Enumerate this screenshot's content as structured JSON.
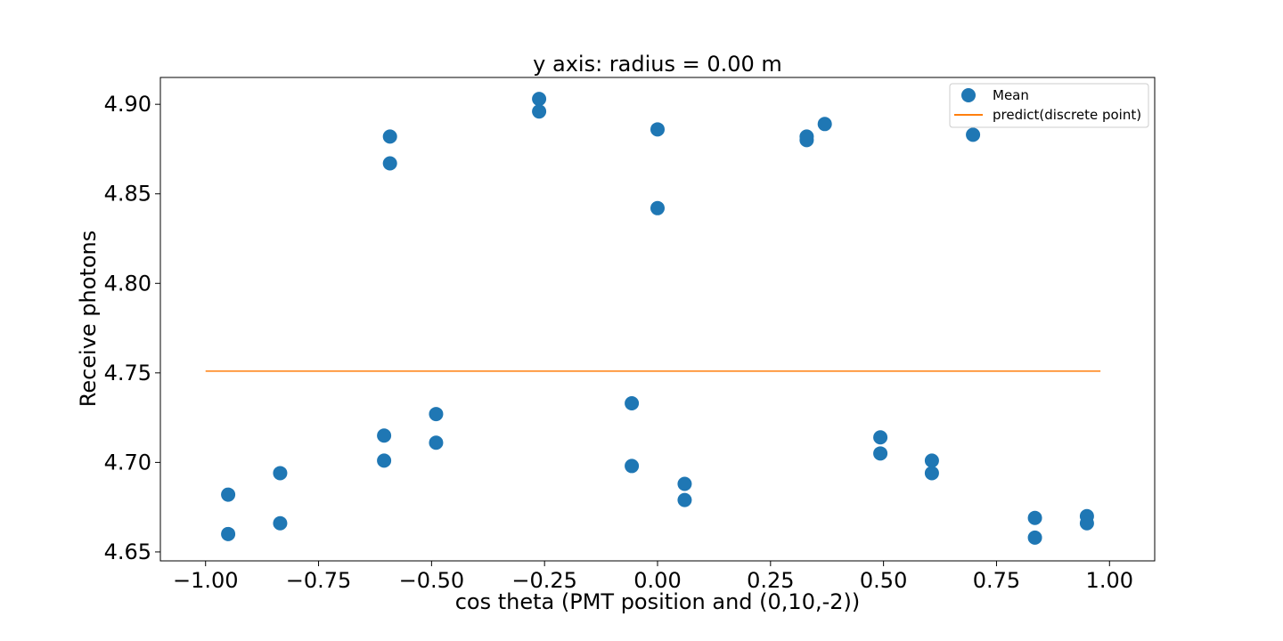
{
  "chart_data": {
    "type": "scatter",
    "title": "y axis: radius = 0.00 m",
    "xlabel": "cos theta (PMT position and (0,10,-2))",
    "ylabel": "Receive photons",
    "xlim": [
      -1.1,
      1.1
    ],
    "ylim": [
      4.645,
      4.915
    ],
    "xticks": [
      -1.0,
      -0.75,
      -0.5,
      -0.25,
      0.0,
      0.25,
      0.5,
      0.75,
      1.0
    ],
    "xtick_labels": [
      "−1.00",
      "−0.75",
      "−0.50",
      "−0.25",
      "0.00",
      "0.25",
      "0.50",
      "0.75",
      "1.00"
    ],
    "yticks": [
      4.65,
      4.7,
      4.75,
      4.8,
      4.85,
      4.9
    ],
    "ytick_labels": [
      "4.65",
      "4.70",
      "4.75",
      "4.80",
      "4.85",
      "4.90"
    ],
    "grid": false,
    "legend_position": "top-right",
    "series": [
      {
        "name": "Mean",
        "kind": "scatter",
        "color": "#1f77b4",
        "points": [
          {
            "x": -0.95,
            "y": 4.682
          },
          {
            "x": -0.95,
            "y": 4.66
          },
          {
            "x": -0.835,
            "y": 4.694
          },
          {
            "x": -0.835,
            "y": 4.666
          },
          {
            "x": -0.605,
            "y": 4.715
          },
          {
            "x": -0.605,
            "y": 4.701
          },
          {
            "x": -0.592,
            "y": 4.882
          },
          {
            "x": -0.592,
            "y": 4.867
          },
          {
            "x": -0.49,
            "y": 4.727
          },
          {
            "x": -0.49,
            "y": 4.711
          },
          {
            "x": -0.262,
            "y": 4.903
          },
          {
            "x": -0.262,
            "y": 4.896
          },
          {
            "x": -0.057,
            "y": 4.733
          },
          {
            "x": -0.057,
            "y": 4.698
          },
          {
            "x": 0.0,
            "y": 4.886
          },
          {
            "x": 0.0,
            "y": 4.842
          },
          {
            "x": 0.06,
            "y": 4.688
          },
          {
            "x": 0.06,
            "y": 4.679
          },
          {
            "x": 0.33,
            "y": 4.882
          },
          {
            "x": 0.33,
            "y": 4.88
          },
          {
            "x": 0.37,
            "y": 4.889
          },
          {
            "x": 0.493,
            "y": 4.714
          },
          {
            "x": 0.493,
            "y": 4.705
          },
          {
            "x": 0.607,
            "y": 4.701
          },
          {
            "x": 0.607,
            "y": 4.694
          },
          {
            "x": 0.698,
            "y": 4.883
          },
          {
            "x": 0.835,
            "y": 4.669
          },
          {
            "x": 0.835,
            "y": 4.658
          },
          {
            "x": 0.95,
            "y": 4.67
          },
          {
            "x": 0.95,
            "y": 4.666
          }
        ]
      },
      {
        "name": "predict(discrete point)",
        "kind": "line",
        "color": "#ff7f0e",
        "points": [
          {
            "x": -1.0,
            "y": 4.751
          },
          {
            "x": 0.98,
            "y": 4.751
          }
        ]
      }
    ]
  }
}
